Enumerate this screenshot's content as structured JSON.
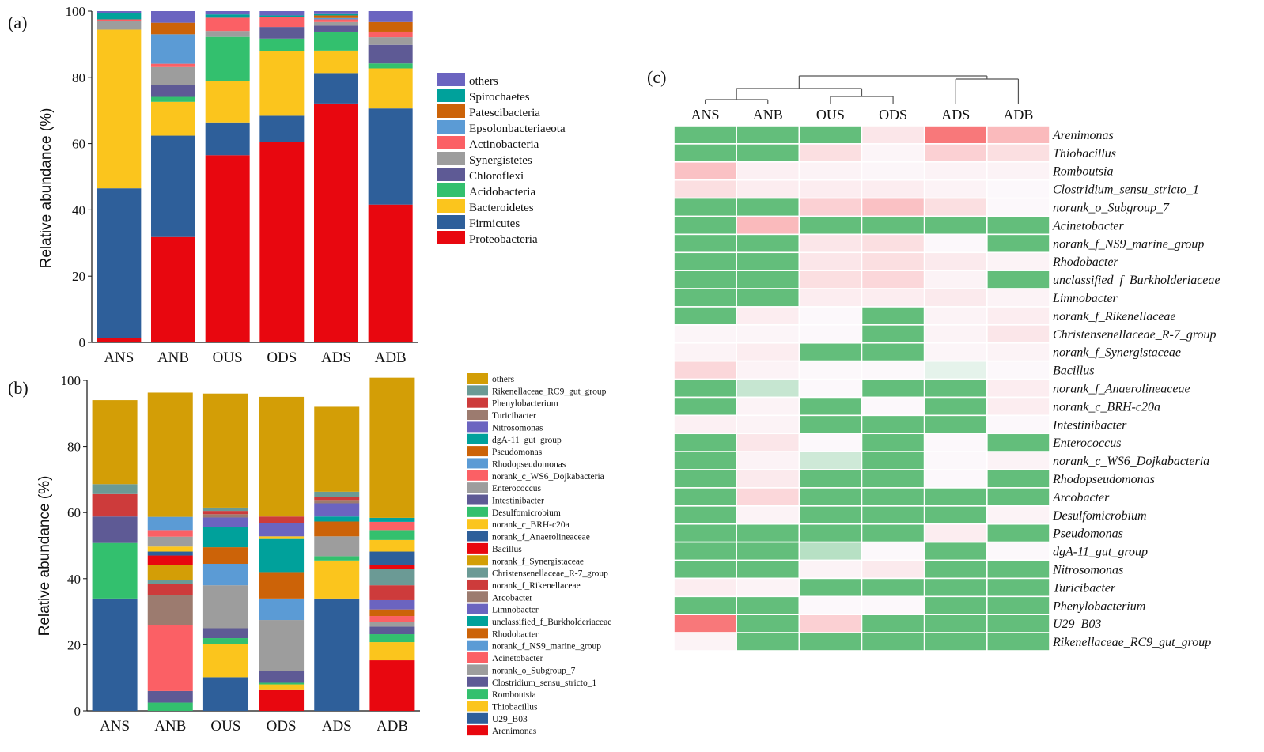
{
  "panel_labels": {
    "a": "(a)",
    "b": "(b)",
    "c": "(c)"
  },
  "colors": {
    "proteobacteria": "#e8070f",
    "firmicutes": "#2e5f9a",
    "bacteroidetes": "#fbc51d",
    "acidobacteria": "#33c06e",
    "chloroflexi": "#5e5a95",
    "synergistetes": "#9d9d9d",
    "actinobacteria": "#fb6065",
    "epsilon": "#5b9bd5",
    "patescibacteria": "#cc6308",
    "spirochaetes": "#00a19b",
    "others_a": "#6b64c0",
    "others_b": "#d39e06",
    "heat_high": "#63be7b",
    "heat_pale_green": "#bfe3c8",
    "heat_low": "#f7696b",
    "heat_white": "#fcfcff"
  },
  "chart_data": [
    {
      "panel": "(a)",
      "type": "bar",
      "stacked": true,
      "ylabel": "Relative abundance (%)",
      "xlabel": "",
      "ylim": [
        0,
        100
      ],
      "yticks": [
        "0",
        "20",
        "40",
        "60",
        "80",
        "100"
      ],
      "categories": [
        "ANS",
        "ANB",
        "OUS",
        "ODS",
        "ADS",
        "ADB"
      ],
      "legend_position": "right",
      "series": [
        {
          "name": "Proteobacteria",
          "color": "#e8070f",
          "values": [
            1.2,
            31.8,
            56.5,
            60.6,
            72.1,
            41.6
          ]
        },
        {
          "name": "Firmicutes",
          "color": "#2e5f9a",
          "values": [
            45.3,
            30.6,
            9.9,
            7.8,
            9.2,
            29.0
          ]
        },
        {
          "name": "Bacteroidetes",
          "color": "#fbc51d",
          "values": [
            47.9,
            10.2,
            12.6,
            19.5,
            6.8,
            12.1
          ]
        },
        {
          "name": "Acidobacteria",
          "color": "#33c06e",
          "values": [
            0,
            1.5,
            13.2,
            3.8,
            5.7,
            1.5
          ]
        },
        {
          "name": "Chloroflexi",
          "color": "#5e5a95",
          "values": [
            0,
            3.5,
            0,
            3.5,
            1.8,
            5.6
          ]
        },
        {
          "name": "Synergistetes",
          "color": "#9d9d9d",
          "values": [
            2.6,
            5.5,
            1.8,
            0,
            1.1,
            2.3
          ]
        },
        {
          "name": "Actinobacteria",
          "color": "#fb6065",
          "values": [
            0.5,
            1.0,
            4.0,
            3.0,
            0.8,
            1.7
          ]
        },
        {
          "name": "Epsolonbacteriaeota",
          "color": "#5b9bd5",
          "values": [
            0,
            8.9,
            0,
            0,
            0.4,
            0
          ]
        },
        {
          "name": "Patescibacteria",
          "color": "#cc6308",
          "values": [
            0,
            3.5,
            0,
            0,
            0.8,
            2.9
          ]
        },
        {
          "name": "Spirochaetes",
          "color": "#00a19b",
          "values": [
            2.0,
            0,
            1.0,
            0.5,
            0.4,
            0
          ]
        },
        {
          "name": "others",
          "color": "#6b64c0",
          "values": [
            0.5,
            3.5,
            1.0,
            1.3,
            0.9,
            3.3
          ]
        }
      ]
    },
    {
      "panel": "(b)",
      "type": "bar",
      "stacked": true,
      "ylabel": "Relative abundance (%)",
      "xlabel": "",
      "ylim": [
        0,
        100
      ],
      "yticks": [
        "0",
        "20",
        "40",
        "60",
        "80",
        "100"
      ],
      "categories": [
        "ANS",
        "ANB",
        "OUS",
        "ODS",
        "ADS",
        "ADB"
      ],
      "legend_position": "right",
      "series": [
        {
          "name": "Arenimonas",
          "color": "#e8070f",
          "values": [
            0,
            0,
            0,
            6.5,
            0,
            15.3
          ]
        },
        {
          "name": "U29_B03",
          "color": "#2e5f9a",
          "values": [
            34.0,
            0,
            10.2,
            0,
            34.0,
            0
          ]
        },
        {
          "name": "Thiobacillus",
          "color": "#fbc51d",
          "values": [
            0,
            0,
            10.0,
            1.5,
            11.5,
            5.5
          ]
        },
        {
          "name": "Romboutsia",
          "color": "#33c06e",
          "values": [
            16.8,
            2.5,
            1.8,
            0.5,
            0,
            2.4
          ]
        },
        {
          "name": "Clostridium_sensu_stricto_1",
          "color": "#5e5a95",
          "values": [
            0,
            3.5,
            3.0,
            3.5,
            0,
            2.3
          ]
        },
        {
          "name": "norank_o_Subgroup_7",
          "color": "#9d9d9d",
          "values": [
            0,
            0,
            13.0,
            15.5,
            0,
            1.4
          ]
        },
        {
          "name": "Acinetobacter",
          "color": "#fb6065",
          "values": [
            0,
            20.0,
            0,
            0,
            0,
            1.8
          ]
        },
        {
          "name": "norank_f_NS9_marine_group",
          "color": "#5b9bd5",
          "values": [
            0,
            0,
            6.5,
            6.5,
            0,
            0
          ]
        },
        {
          "name": "Rhodobacter",
          "color": "#cc6308",
          "values": [
            0,
            0,
            0,
            8.0,
            0,
            2.0
          ]
        },
        {
          "name": "unclassified_f_Burkholderiaceae",
          "color": "#00a19b",
          "values": [
            0,
            0,
            0,
            10.0,
            0,
            0
          ]
        },
        {
          "name": "Limnobacter",
          "color": "#6b64c0",
          "values": [
            0,
            0,
            0,
            0,
            0,
            2.8
          ]
        },
        {
          "name": "Arcobacter",
          "color": "#9c7b6f",
          "values": [
            0,
            9.0,
            0,
            0,
            0,
            0
          ]
        },
        {
          "name": "norank_f_Rikenellaceae",
          "color": "#cd3b3b",
          "values": [
            0,
            3.5,
            0,
            0,
            0,
            4.5
          ]
        },
        {
          "name": "Christensenellaceae_R-7_group",
          "color": "#6b9a95",
          "values": [
            0,
            1.2,
            0,
            0,
            0,
            5.0
          ]
        },
        {
          "name": "norank_f_Synergistaceae",
          "color": "#d39e06",
          "values": [
            0,
            4.5,
            0,
            0,
            0,
            0
          ]
        },
        {
          "name": "Bacillus",
          "color": "#e8070f",
          "values": [
            0,
            2.8,
            0,
            0,
            0,
            1.2
          ]
        },
        {
          "name": "norank_f_Anaerolineaceae",
          "color": "#2e5f9a",
          "values": [
            0,
            1.2,
            0,
            0,
            0,
            4.0
          ]
        },
        {
          "name": "norank_c_BRH-c20a",
          "color": "#fbc51d",
          "values": [
            0,
            1.5,
            0,
            0.8,
            0,
            3.5
          ]
        },
        {
          "name": "Desulfomicrobium",
          "color": "#33c06e",
          "values": [
            0,
            0,
            0,
            0,
            1.3,
            3.0
          ]
        },
        {
          "name": "Intestinibacter",
          "color": "#5e5a95",
          "values": [
            8.0,
            0,
            0,
            0,
            0,
            0
          ]
        },
        {
          "name": "Enterococcus",
          "color": "#9d9d9d",
          "values": [
            0,
            3.0,
            0,
            0,
            6.0,
            0
          ]
        },
        {
          "name": "norank_c_WS6_Dojkabacteria",
          "color": "#fb6065",
          "values": [
            0,
            2.0,
            0,
            0,
            0,
            2.5
          ]
        },
        {
          "name": "Rhodopseudomonas",
          "color": "#5b9bd5",
          "values": [
            0,
            4.0,
            0,
            0,
            0,
            0
          ]
        },
        {
          "name": "Pseudomonas",
          "color": "#cc6308",
          "values": [
            0,
            0,
            5.0,
            0,
            4.5,
            0
          ]
        },
        {
          "name": "dgA-11_gut_group",
          "color": "#00a19b",
          "values": [
            0,
            0,
            6.0,
            0,
            1.5,
            1.2
          ]
        },
        {
          "name": "Nitrosomonas",
          "color": "#6b64c0",
          "values": [
            0,
            0,
            3.0,
            4.0,
            4.0,
            0
          ]
        },
        {
          "name": "Turicibacter",
          "color": "#9c7b6f",
          "values": [
            0,
            0,
            1.0,
            0,
            1.0,
            0
          ]
        },
        {
          "name": "Phenylobacterium",
          "color": "#cd3b3b",
          "values": [
            6.8,
            0,
            1.0,
            2.0,
            1.0,
            0
          ]
        },
        {
          "name": "Rikenellaceae_RC9_gut_group",
          "color": "#6b9a95",
          "values": [
            3.0,
            0,
            1.0,
            0,
            1.5,
            0
          ]
        },
        {
          "name": "others",
          "color": "#d39e06",
          "values": [
            25.4,
            37.6,
            34.5,
            36.2,
            25.7,
            42.4
          ]
        }
      ]
    },
    {
      "panel": "(c)",
      "type": "heatmap",
      "columns": [
        "ANS",
        "ANB",
        "OUS",
        "ODS",
        "ADS",
        "ADB"
      ],
      "rows": [
        "Arenimonas",
        "Thiobacillus",
        "Romboutsia",
        "Clostridium_sensu_stricto_1",
        "norank_o_Subgroup_7",
        "Acinetobacter",
        "norank_f_NS9_marine_group",
        "Rhodobacter",
        "unclassified_f_Burkholderiaceae",
        "Limnobacter",
        "norank_f_Rikenellaceae",
        "Christensenellaceae_R-7_group",
        "norank_f_Synergistaceae",
        "Bacillus",
        "norank_f_Anaerolineaceae",
        "norank_c_BRH-c20a",
        "Intestinibacter",
        "Enterococcus",
        "norank_c_WS6_Dojkabacteria",
        "Rhodopseudomonas",
        "Arcobacter",
        "Desulfomicrobium",
        "Pseudomonas",
        "dgA-11_gut_group",
        "Nitrosomonas",
        "Turicibacter",
        "Phenylobacterium",
        "U29_B03",
        "Rikenellaceae_RC9_gut_group"
      ],
      "color_scale": "green(high) – white – red(low)",
      "values": [
        [
          1.0,
          1.0,
          1.0,
          -0.15,
          -0.9,
          -0.45
        ],
        [
          1.0,
          1.0,
          -0.2,
          -0.05,
          -0.3,
          -0.2
        ],
        [
          -0.4,
          -0.08,
          -0.06,
          -0.04,
          -0.06,
          -0.06
        ],
        [
          -0.2,
          -0.1,
          -0.1,
          -0.1,
          -0.06,
          -0.03
        ],
        [
          1.0,
          1.0,
          -0.3,
          -0.4,
          -0.2,
          -0.03
        ],
        [
          1.0,
          -0.45,
          1.0,
          1.0,
          1.0,
          1.0
        ],
        [
          1.0,
          1.0,
          -0.15,
          -0.2,
          -0.03,
          1.0
        ],
        [
          1.0,
          1.0,
          -0.15,
          -0.2,
          -0.12,
          -0.06
        ],
        [
          1.0,
          1.0,
          -0.2,
          -0.25,
          -0.06,
          1.0
        ],
        [
          1.0,
          1.0,
          -0.1,
          -0.1,
          -0.12,
          -0.06
        ],
        [
          1.0,
          -0.1,
          -0.03,
          1.0,
          -0.06,
          -0.1
        ],
        [
          -0.05,
          -0.05,
          -0.03,
          1.0,
          -0.06,
          -0.15
        ],
        [
          -0.06,
          -0.1,
          1.0,
          1.0,
          -0.05,
          -0.06
        ],
        [
          -0.25,
          -0.06,
          -0.03,
          -0.03,
          0.15,
          -0.03
        ],
        [
          1.0,
          0.35,
          -0.03,
          1.0,
          1.0,
          -0.1
        ],
        [
          1.0,
          -0.06,
          1.0,
          -0.03,
          1.0,
          -0.1
        ],
        [
          -0.08,
          -0.06,
          1.0,
          1.0,
          1.0,
          -0.03
        ],
        [
          1.0,
          -0.15,
          -0.03,
          1.0,
          -0.03,
          1.0
        ],
        [
          1.0,
          -0.06,
          0.3,
          1.0,
          -0.03,
          -0.06
        ],
        [
          1.0,
          -0.12,
          1.0,
          1.0,
          -0.03,
          1.0
        ],
        [
          1.0,
          -0.25,
          1.0,
          1.0,
          1.0,
          1.0
        ],
        [
          1.0,
          -0.06,
          1.0,
          1.0,
          1.0,
          -0.06
        ],
        [
          1.0,
          1.0,
          1.0,
          1.0,
          -0.1,
          1.0
        ],
        [
          1.0,
          1.0,
          0.45,
          -0.03,
          1.0,
          -0.03
        ],
        [
          1.0,
          1.0,
          -0.06,
          -0.12,
          1.0,
          1.0
        ],
        [
          -0.1,
          -0.06,
          1.0,
          1.0,
          1.0,
          1.0
        ],
        [
          1.0,
          1.0,
          -0.03,
          -0.03,
          1.0,
          1.0
        ],
        [
          -0.9,
          1.0,
          -0.3,
          1.0,
          1.0,
          1.0
        ],
        [
          -0.06,
          1.0,
          1.0,
          1.0,
          1.0,
          1.0
        ]
      ],
      "dendrogram": "column clustering tree: ANS, ANB, OUS, ODS | ADS, ADB"
    }
  ]
}
